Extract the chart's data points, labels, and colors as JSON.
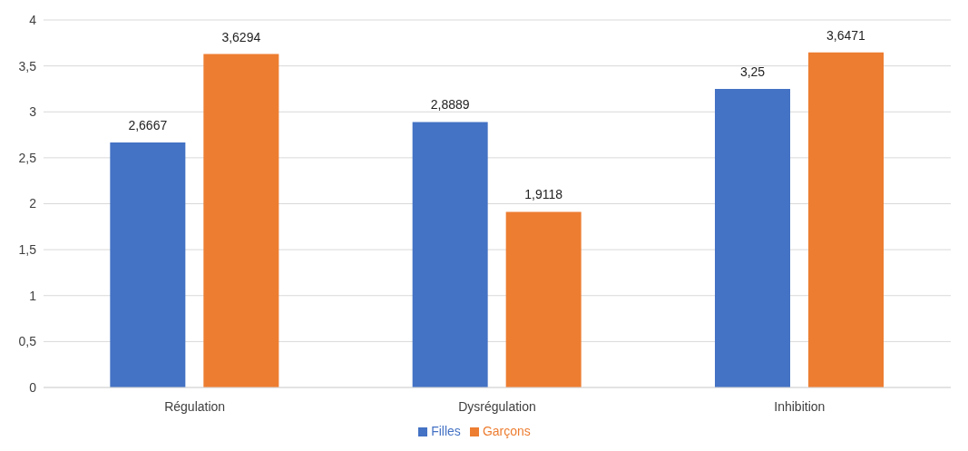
{
  "chart_data": {
    "type": "bar",
    "categories": [
      "Régulation",
      "Dysrégulation",
      "Inhibition"
    ],
    "series": [
      {
        "name": "Filles",
        "color": "#4472c4",
        "values": [
          2.6667,
          2.8889,
          3.25
        ],
        "value_labels": [
          "2,6667",
          "2,8889",
          "3,25"
        ]
      },
      {
        "name": "Garçons",
        "color": "#ed7d31",
        "values": [
          3.6294,
          1.9118,
          3.6471
        ],
        "value_labels": [
          "3,6294",
          "1,9118",
          "3,6471"
        ]
      }
    ],
    "ylim": [
      0,
      4
    ],
    "yticks": [
      0,
      {
        "value": 0.5,
        "label": "0,5"
      },
      1,
      {
        "value": 1.5,
        "label": "1,5"
      },
      2,
      {
        "value": 2.5,
        "label": "2,5"
      },
      3,
      {
        "value": 3.5,
        "label": "3,5"
      },
      4
    ],
    "grid": "y",
    "legend": "bottom"
  }
}
